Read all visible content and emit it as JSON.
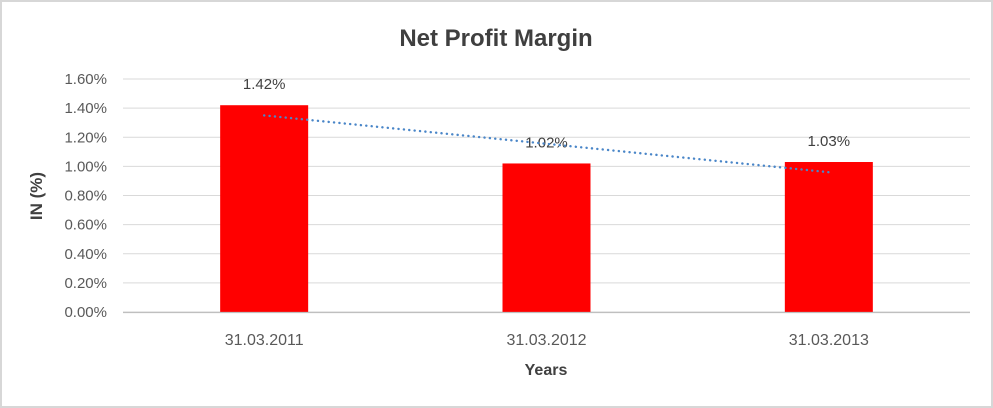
{
  "chart_data": {
    "type": "bar",
    "title": "Net Profit Margin",
    "xlabel": "Years",
    "ylabel": "IN (%)",
    "categories": [
      "31.03.2011",
      "31.03.2012",
      "31.03.2013"
    ],
    "values": [
      1.42,
      1.02,
      1.03
    ],
    "data_labels": [
      "1.42%",
      "1.02%",
      "1.03%"
    ],
    "ytick_labels": [
      "0.00%",
      "0.20%",
      "0.40%",
      "0.60%",
      "0.80%",
      "1.00%",
      "1.20%",
      "1.40%",
      "1.60%"
    ],
    "ylim": [
      0,
      1.6
    ],
    "ytick_step": 0.2,
    "grid": true,
    "legend": false,
    "trendline": {
      "type": "linear",
      "style": "dotted",
      "start_value": 1.35,
      "end_value": 0.96
    },
    "colors": {
      "bar": "#FF0000",
      "trendline": "#4A86C8",
      "gridline": "#D9D9D9",
      "axis_line": "#BFBFBF",
      "tick_text": "#595959",
      "label_text": "#404040",
      "title_text": "#3F3F3F",
      "frame_border": "#D7D7D7"
    }
  }
}
